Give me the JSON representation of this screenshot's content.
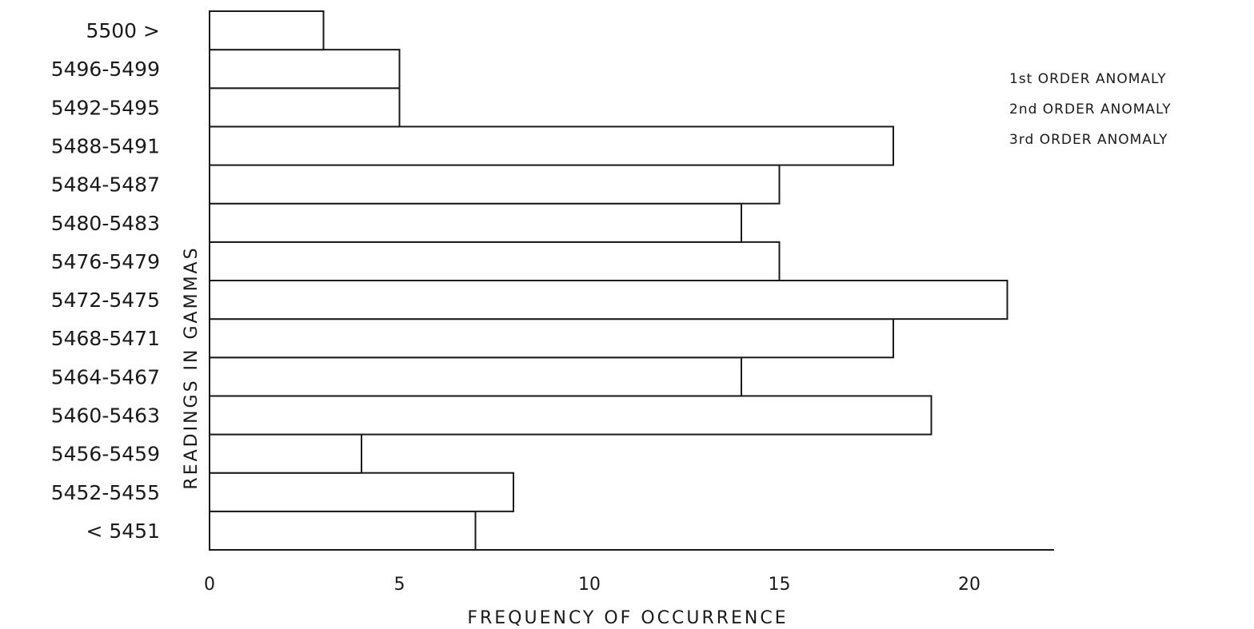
{
  "chart_data": {
    "type": "bar",
    "orientation": "horizontal",
    "categories": [
      "< 5451",
      "5452-5455",
      "5456-5459",
      "5460-5463",
      "5464-5467",
      "5468-5471",
      "5472-5475",
      "5476-5479",
      "5480-5483",
      "5484-5487",
      "5488-5491",
      "5492-5495",
      "5496-5499",
      "5500 >"
    ],
    "values": [
      7,
      8,
      4,
      19,
      14,
      18,
      21,
      15,
      14,
      15,
      18,
      5,
      5,
      3
    ],
    "xlabel": "FREQUENCY OF OCCURRENCE",
    "ylabel": "READINGS IN GAMMAS",
    "xlim": [
      0,
      22
    ],
    "xticks": [
      0,
      5,
      10,
      15,
      20
    ],
    "xtick_labels": [
      "0",
      "5",
      "10",
      "15",
      "20"
    ],
    "grid": false,
    "legend_placement": "top-right",
    "legend": [
      "1st ORDER ANOMALY",
      "2nd ORDER ANOMALY",
      "3rd ORDER ANOMALY"
    ]
  }
}
